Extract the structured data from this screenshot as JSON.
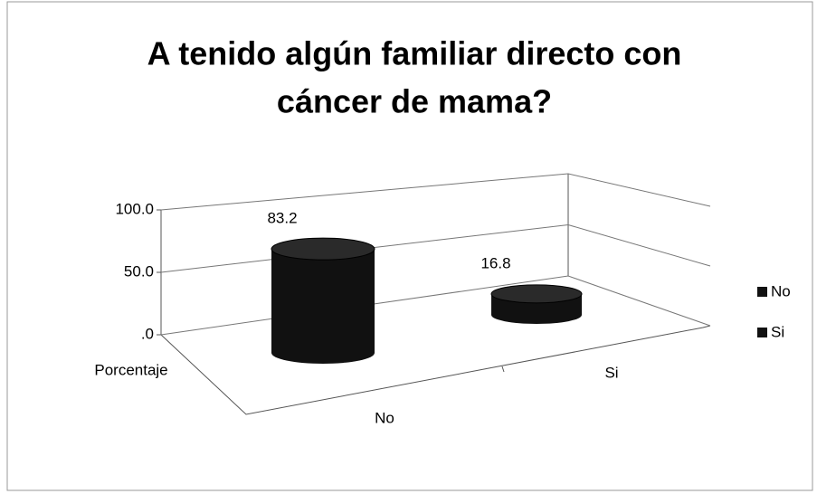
{
  "chart_data": {
    "type": "cylinder",
    "title": [
      "A tenido algún familiar directo con",
      "cáncer de mama?"
    ],
    "categories": [
      "No",
      "Si"
    ],
    "depth_label": "Porcentaje",
    "values": [
      83.2,
      16.8
    ],
    "colors": [
      "#111111",
      "#111111"
    ],
    "ylim": [
      0,
      100
    ],
    "yticks": [
      {
        "value": 0,
        "label": ".0"
      },
      {
        "value": 50,
        "label": "50.0"
      },
      {
        "value": 100,
        "label": "100.0"
      }
    ],
    "grid": true,
    "legend": "right"
  }
}
